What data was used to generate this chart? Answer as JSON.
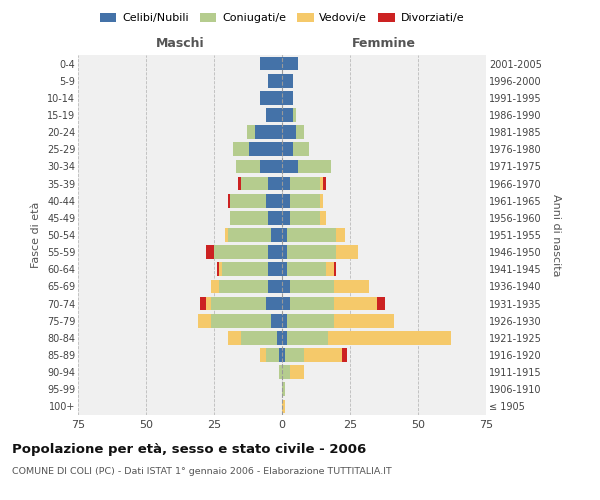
{
  "age_groups": [
    "100+",
    "95-99",
    "90-94",
    "85-89",
    "80-84",
    "75-79",
    "70-74",
    "65-69",
    "60-64",
    "55-59",
    "50-54",
    "45-49",
    "40-44",
    "35-39",
    "30-34",
    "25-29",
    "20-24",
    "15-19",
    "10-14",
    "5-9",
    "0-4"
  ],
  "birth_years": [
    "≤ 1905",
    "1906-1910",
    "1911-1915",
    "1916-1920",
    "1921-1925",
    "1926-1930",
    "1931-1935",
    "1936-1940",
    "1941-1945",
    "1946-1950",
    "1951-1955",
    "1956-1960",
    "1961-1965",
    "1966-1970",
    "1971-1975",
    "1976-1980",
    "1981-1985",
    "1986-1990",
    "1991-1995",
    "1996-2000",
    "2001-2005"
  ],
  "male": {
    "celibi": [
      0,
      0,
      0,
      1,
      2,
      4,
      6,
      5,
      5,
      5,
      4,
      5,
      6,
      5,
      8,
      12,
      10,
      6,
      8,
      5,
      8
    ],
    "coniugati": [
      0,
      0,
      1,
      5,
      13,
      22,
      20,
      18,
      17,
      20,
      16,
      14,
      13,
      10,
      9,
      6,
      3,
      0,
      0,
      0,
      0
    ],
    "vedovi": [
      0,
      0,
      0,
      2,
      5,
      5,
      2,
      3,
      1,
      0,
      1,
      0,
      0,
      0,
      0,
      0,
      0,
      0,
      0,
      0,
      0
    ],
    "divorziati": [
      0,
      0,
      0,
      0,
      0,
      0,
      2,
      0,
      1,
      3,
      0,
      0,
      1,
      1,
      0,
      0,
      0,
      0,
      0,
      0,
      0
    ]
  },
  "female": {
    "nubili": [
      0,
      0,
      0,
      1,
      2,
      2,
      3,
      3,
      2,
      2,
      2,
      3,
      3,
      3,
      6,
      4,
      5,
      4,
      4,
      4,
      6
    ],
    "coniugate": [
      0,
      1,
      3,
      7,
      15,
      17,
      16,
      16,
      14,
      18,
      18,
      11,
      11,
      11,
      12,
      6,
      3,
      1,
      0,
      0,
      0
    ],
    "vedove": [
      1,
      0,
      5,
      14,
      45,
      22,
      16,
      13,
      3,
      8,
      3,
      2,
      1,
      1,
      0,
      0,
      0,
      0,
      0,
      0,
      0
    ],
    "divorziate": [
      0,
      0,
      0,
      2,
      0,
      0,
      3,
      0,
      1,
      0,
      0,
      0,
      0,
      1,
      0,
      0,
      0,
      0,
      0,
      0,
      0
    ]
  },
  "colors": {
    "celibi": "#4472a8",
    "coniugati": "#b5cc8e",
    "vedovi": "#f5c96a",
    "divorziati": "#cc2222"
  },
  "title": "Popolazione per età, sesso e stato civile - 2006",
  "subtitle": "COMUNE DI COLI (PC) - Dati ISTAT 1° gennaio 2006 - Elaborazione TUTTITALIA.IT",
  "xlabel_left": "Maschi",
  "xlabel_right": "Femmine",
  "ylabel_left": "Fasce di età",
  "ylabel_right": "Anni di nascita",
  "xlim": 75,
  "background_color": "#ffffff",
  "plot_bg": "#f0f0f0",
  "grid_color": "#cccccc"
}
